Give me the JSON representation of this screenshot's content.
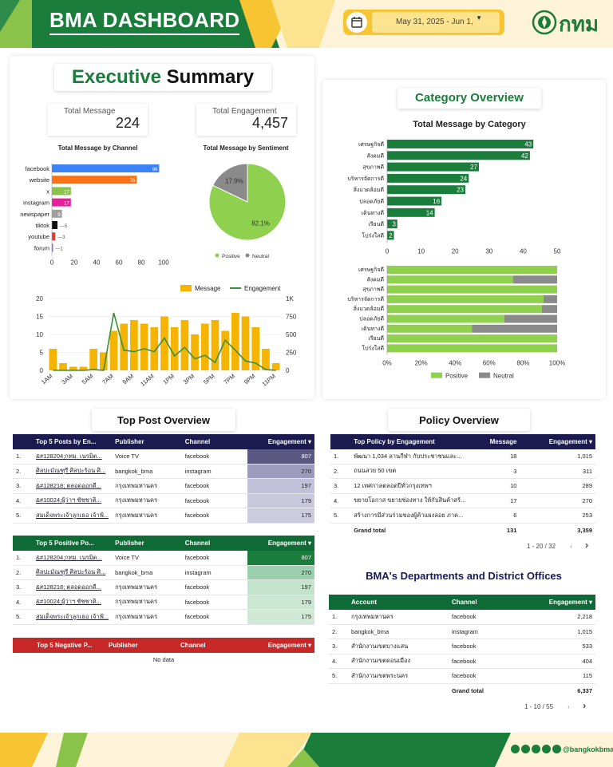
{
  "header": {
    "title": "BMA DASHBOARD",
    "date_range": "May 31, 2025 - Jun 1,",
    "logo_text": "กทม",
    "colors": {
      "green": "#1b7d3b",
      "yellow": "#f7c531",
      "cream": "#fdf3d8"
    }
  },
  "exec": {
    "title_a": "Executive",
    "title_b": "Summary",
    "total_message_label": "Total Message",
    "total_message_value": "224",
    "total_engagement_label": "Total Engagement",
    "total_engagement_value": "4,457"
  },
  "channel_chart": {
    "title": "Total Message by Channel",
    "type": "bar",
    "categories": [
      "facebook",
      "website",
      "x",
      "instagram",
      "newspaper",
      "tiktok",
      "youtube",
      "forum"
    ],
    "values": [
      96,
      76,
      17,
      17,
      9,
      5,
      3,
      1
    ],
    "colors": [
      "#3b82f6",
      "#f97316",
      "#8bc34a",
      "#e91e9c",
      "#9e9e9e",
      "#111111",
      "#e53935",
      "#7e57c2"
    ],
    "xticks": [
      "0",
      "20",
      "40",
      "60",
      "80",
      "100"
    ],
    "xlim": [
      0,
      100
    ]
  },
  "sentiment_chart": {
    "title": "Total Message by Sentiment",
    "type": "pie",
    "slices": [
      {
        "name": "Positive",
        "value": 82.1,
        "label": "82.1%",
        "color": "#8fd14f"
      },
      {
        "name": "Neutral",
        "value": 17.9,
        "label": "17.9%",
        "color": "#8a8a8a"
      }
    ]
  },
  "time_chart": {
    "type": "bar",
    "legend_message": "Message",
    "legend_engagement": "Engagement",
    "x_labels": [
      "1AM",
      "3AM",
      "5AM",
      "7AM",
      "9AM",
      "11AM",
      "1PM",
      "3PM",
      "5PM",
      "7PM",
      "9PM",
      "11PM"
    ],
    "left_ticks": [
      "0",
      "5",
      "10",
      "15",
      "20"
    ],
    "right_ticks": [
      "0",
      "250",
      "500",
      "750",
      "1K"
    ],
    "message_values": [
      6,
      2,
      1,
      1,
      6,
      5,
      11,
      13,
      14,
      13,
      12,
      15,
      12,
      14,
      10,
      13,
      14,
      11,
      16,
      15,
      12,
      6,
      2
    ],
    "engagement_values": [
      0,
      0,
      0,
      0,
      10,
      0,
      800,
      280,
      260,
      300,
      260,
      450,
      200,
      320,
      160,
      210,
      110,
      420,
      280,
      130,
      100,
      10,
      0
    ],
    "ylim": [
      0,
      20
    ],
    "y2lim": [
      0,
      1000
    ]
  },
  "category": {
    "title": "Category Overview",
    "chart_title": "Total Message by Category",
    "type": "bar",
    "categories": [
      "เศรษฐกิจดี",
      "สังคมดี",
      "สุขภาพดี",
      "บริหารจัดการดี",
      "สิ่งแวดล้อมดี",
      "ปลอดภัยดี",
      "เดินทางดี",
      "เรียนดี",
      "โปร่งใสดี"
    ],
    "values": [
      43,
      42,
      27,
      24,
      23,
      16,
      14,
      3,
      2
    ],
    "xticks": [
      "0",
      "10",
      "20",
      "30",
      "40",
      "50"
    ],
    "xlim": [
      0,
      50
    ],
    "positive_share": [
      1.0,
      0.74,
      1.0,
      0.92,
      0.91,
      0.69,
      0.5,
      1.0,
      1.0
    ],
    "pct_ticks": [
      "0%",
      "20%",
      "40%",
      "60%",
      "80%",
      "100%"
    ],
    "legend_positive": "Positive",
    "legend_neutral": "Neutral"
  },
  "top_post": {
    "title": "Top Post Overview",
    "all": {
      "headers": [
        "Top 5 Posts by En...",
        "Publisher",
        "Channel",
        "Engagement"
      ],
      "rows": [
        [
          "1.",
          "&#128204;กทม. เนรมิต...",
          "Voice TV",
          "facebook",
          "807"
        ],
        [
          "2.",
          "ศิลปะมัณฑุรี ศิลปะร้อน ศิ...",
          "bangkok_bma",
          "instagram",
          "270"
        ],
        [
          "3.",
          "&#128218; ตลอดออกดี...",
          "กรุงเทพมหานคร",
          "facebook",
          "197"
        ],
        [
          "4.",
          "&#10024;ผู้ว่าฯ ชัชชาติ...",
          "กรุงเทพมหานคร",
          "facebook",
          "179"
        ],
        [
          "5.",
          "สมเด็จพระเจ้าลูกเธอ เจ้าฟ้...",
          "กรุงเทพมหานคร",
          "facebook",
          "175"
        ]
      ]
    },
    "positive": {
      "headers": [
        "Top 5 Positive Po...",
        "Publisher",
        "Channel",
        "Engagement"
      ],
      "rows": [
        [
          "1.",
          "&#128204;กทม. เนรมิต...",
          "Voice TV",
          "facebook",
          "807"
        ],
        [
          "2.",
          "ศิลปะมัณฑุรี ศิลปะร้อน ศิ...",
          "bangkok_bma",
          "instagram",
          "270"
        ],
        [
          "3.",
          "&#128218; ตลอดออกดี...",
          "กรุงเทพมหานคร",
          "facebook",
          "197"
        ],
        [
          "4.",
          "&#10024;ผู้ว่าฯ ชัชชาติ...",
          "กรุงเทพมหานคร",
          "facebook",
          "179"
        ],
        [
          "5.",
          "สมเด็จพระเจ้าลูกเธอ เจ้าฟ้...",
          "กรุงเทพมหานคร",
          "facebook",
          "175"
        ]
      ]
    },
    "negative": {
      "headers": [
        "Top 5 Negative P...",
        "Publisher",
        "Channel",
        "Engagement"
      ],
      "empty": "No data"
    }
  },
  "policy": {
    "title": "Policy Overview",
    "headers": [
      "Top Policy by Engagement",
      "Message",
      "Engagement"
    ],
    "rows": [
      [
        "1.",
        "พัฒนา 1,034 ลานกีฬา กับประชาชนและ...",
        "18",
        "1,015"
      ],
      [
        "2.",
        "ถนนสวย 50 เขต",
        "3",
        "311"
      ],
      [
        "3.",
        "12 เทศกาลตลอดปีทั่วกรุงเทพฯ",
        "10",
        "289"
      ],
      [
        "4.",
        "ขยายโอกาส ขยายช่องทาง ให้กับสินค้าสร้...",
        "17",
        "270"
      ],
      [
        "5.",
        "สร้างการมีส่วนร่วมของผู้ค้าแผงลอย ภาค...",
        "6",
        "253"
      ]
    ],
    "total_label": "Grand total",
    "total_message": "131",
    "total_engagement": "3,359",
    "pager": "1 - 20 / 32"
  },
  "depts": {
    "title": "BMA's Departments and District Offices",
    "headers": [
      "Account",
      "Channel",
      "Engagement"
    ],
    "rows": [
      [
        "1.",
        "กรุงเทพมหานคร",
        "facebook",
        "2,218"
      ],
      [
        "2.",
        "bangkok_bma",
        "instagram",
        "1,015"
      ],
      [
        "3.",
        "สำนักงานเขตบางแสน",
        "facebook",
        "533"
      ],
      [
        "4.",
        "สำนักงานเขตดอนเมือง",
        "facebook",
        "404"
      ],
      [
        "5.",
        "สำนักงานเขตพระนคร",
        "facebook",
        "115"
      ]
    ],
    "total_label": "Grand total",
    "total_value": "6,337",
    "pager": "1 - 10 / 55"
  },
  "footer": {
    "handle": "@bangkokbma"
  }
}
